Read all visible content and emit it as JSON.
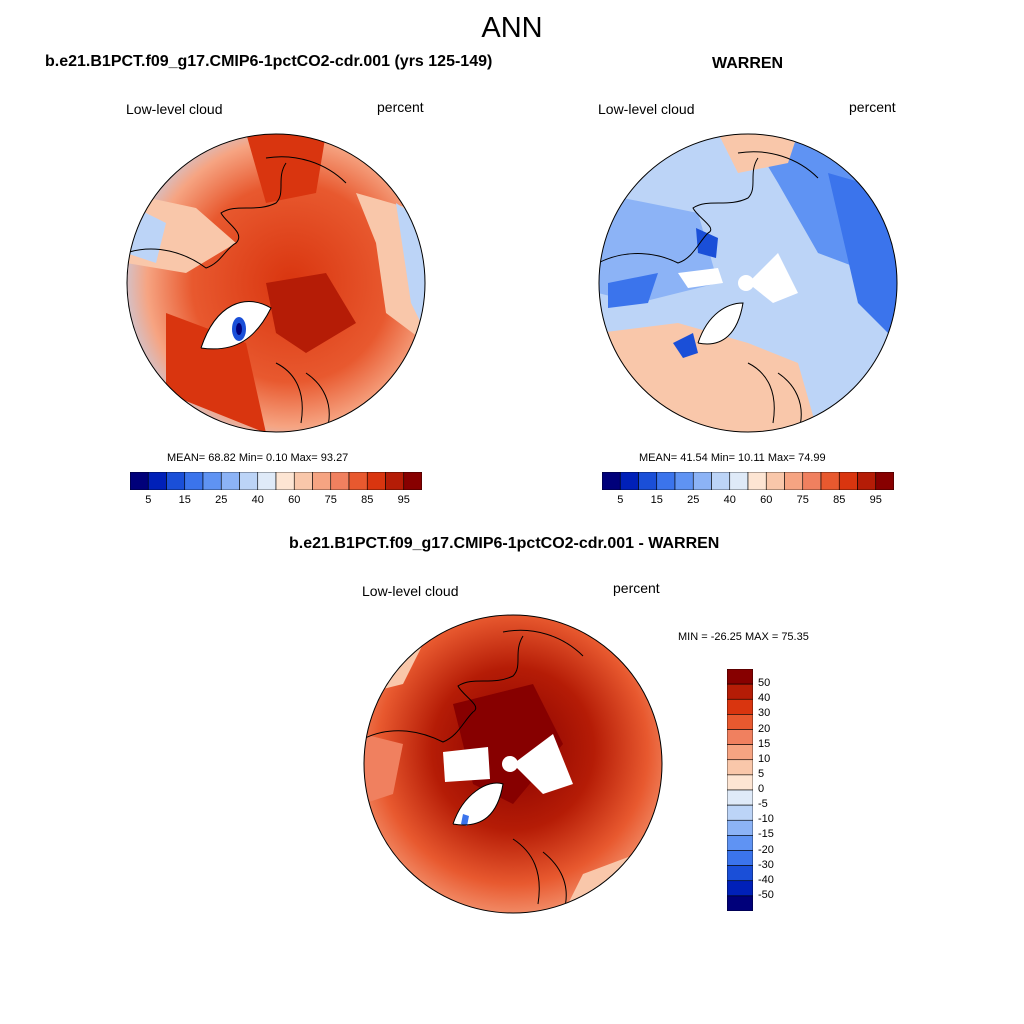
{
  "page_title": "ANN",
  "panels": [
    {
      "title": "b.e21.B1PCT.f09_g17.CMIP6-1pctCO2-cdr.001 (yrs 125-149)",
      "left_label": "Low-level cloud",
      "right_label": "percent",
      "stats": "MEAN=  68.82  Min=   0.10  Max=  93.27"
    },
    {
      "title": "WARREN",
      "left_label": "Low-level cloud",
      "right_label": "percent",
      "stats": "MEAN=  41.54  Min=  10.11  Max=  74.99"
    },
    {
      "title": "b.e21.B1PCT.f09_g17.CMIP6-1pctCO2-cdr.001 - WARREN",
      "left_label": "Low-level cloud",
      "right_label": "percent",
      "stats": "MIN = -26.25 MAX =  75.35"
    }
  ],
  "colorbar_abs": {
    "colors": [
      "#00007a",
      "#0020b8",
      "#1a4fd8",
      "#3b74ec",
      "#5f93f3",
      "#8cb3f6",
      "#bcd4f7",
      "#dfeaf8",
      "#fde5d3",
      "#f9c7aa",
      "#f6a482",
      "#f0805f",
      "#e8592f",
      "#d9350f",
      "#b51c06",
      "#870000"
    ],
    "labels": [
      "5",
      "15",
      "25",
      "40",
      "60",
      "75",
      "85",
      "95"
    ]
  },
  "colorbar_diff": {
    "colors": [
      "#870000",
      "#b51c06",
      "#d9350f",
      "#e8592f",
      "#f0805f",
      "#f6a482",
      "#f9c7aa",
      "#fde5d3",
      "#dfeaf8",
      "#bcd4f7",
      "#8cb3f6",
      "#5f93f3",
      "#3b74ec",
      "#1a4fd8",
      "#0020b8",
      "#00007a"
    ],
    "labels": [
      "50",
      "40",
      "30",
      "20",
      "15",
      "10",
      "5",
      "0",
      "-5",
      "-10",
      "-15",
      "-20",
      "-30",
      "-40",
      "-50"
    ]
  }
}
